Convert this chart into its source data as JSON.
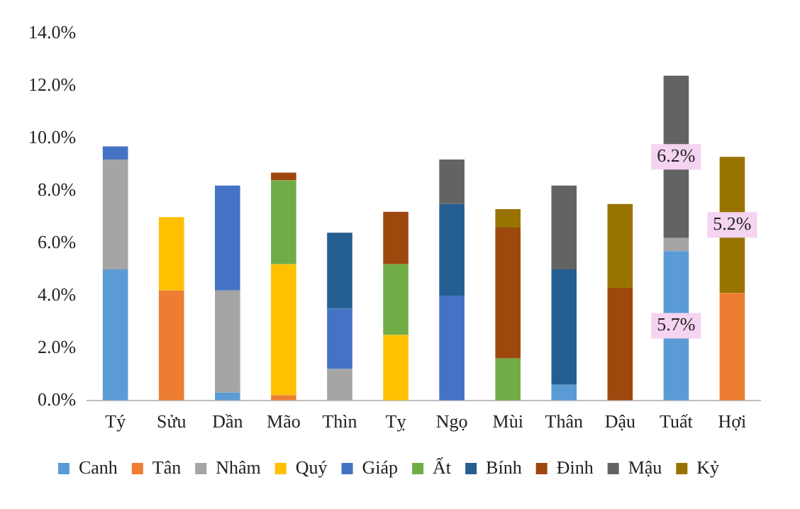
{
  "chart_data": {
    "type": "bar",
    "stacked": true,
    "categories": [
      "Tý",
      "Sửu",
      "Dần",
      "Mão",
      "Thìn",
      "Tỵ",
      "Ngọ",
      "Mùi",
      "Thân",
      "Dậu",
      "Tuất",
      "Hợi"
    ],
    "ylim": [
      0,
      14
    ],
    "yticks": [
      {
        "value": 0,
        "label": "0.0%"
      },
      {
        "value": 2,
        "label": "2.0%"
      },
      {
        "value": 4,
        "label": "4.0%"
      },
      {
        "value": 6,
        "label": "6.0%"
      },
      {
        "value": 8,
        "label": "8.0%"
      },
      {
        "value": 10,
        "label": "10.0%"
      },
      {
        "value": 12,
        "label": "12.0%"
      },
      {
        "value": 14,
        "label": "14.0%"
      }
    ],
    "grid": false,
    "legend": "bottom",
    "series": [
      {
        "name": "Canh",
        "color": "#5b9bd5",
        "values": [
          5.0,
          null,
          0.3,
          null,
          null,
          null,
          null,
          null,
          0.6,
          null,
          5.7,
          null
        ],
        "value_labels": [
          null,
          null,
          null,
          null,
          null,
          null,
          null,
          null,
          null,
          null,
          "5.7%",
          null
        ]
      },
      {
        "name": "Tân",
        "color": "#ed7d31",
        "values": [
          null,
          4.2,
          null,
          0.2,
          null,
          null,
          null,
          null,
          null,
          null,
          null,
          4.1
        ]
      },
      {
        "name": "Nhâm",
        "color": "#a5a5a5",
        "values": [
          4.2,
          null,
          3.9,
          null,
          1.2,
          null,
          null,
          null,
          null,
          null,
          0.5,
          null
        ]
      },
      {
        "name": "Quý",
        "color": "#ffc000",
        "values": [
          null,
          2.8,
          null,
          5.0,
          null,
          2.5,
          null,
          null,
          null,
          null,
          null,
          null
        ]
      },
      {
        "name": "Giáp",
        "color": "#4472c4",
        "values": [
          0.5,
          null,
          4.0,
          null,
          2.3,
          null,
          4.0,
          null,
          null,
          null,
          null,
          null
        ]
      },
      {
        "name": "Ất",
        "color": "#70ad47",
        "values": [
          null,
          null,
          null,
          3.2,
          null,
          2.7,
          null,
          1.6,
          null,
          null,
          null,
          null
        ]
      },
      {
        "name": "Bính",
        "color": "#255e91",
        "values": [
          null,
          null,
          null,
          null,
          2.9,
          null,
          3.5,
          null,
          4.4,
          null,
          null,
          null
        ]
      },
      {
        "name": "Đinh",
        "color": "#9e480e",
        "values": [
          null,
          null,
          null,
          0.3,
          null,
          2.0,
          null,
          5.0,
          null,
          4.3,
          null,
          null
        ]
      },
      {
        "name": "Mậu",
        "color": "#636363",
        "values": [
          null,
          null,
          null,
          null,
          null,
          null,
          1.7,
          null,
          3.2,
          null,
          6.2,
          null
        ],
        "value_labels": [
          null,
          null,
          null,
          null,
          null,
          null,
          null,
          null,
          null,
          null,
          "6.2%",
          null
        ]
      },
      {
        "name": "Kỷ",
        "color": "#997300",
        "values": [
          null,
          null,
          null,
          null,
          null,
          null,
          null,
          0.7,
          null,
          3.2,
          null,
          5.2
        ],
        "value_labels": [
          null,
          null,
          null,
          null,
          null,
          null,
          null,
          null,
          null,
          null,
          null,
          "5.2%"
        ]
      }
    ]
  }
}
